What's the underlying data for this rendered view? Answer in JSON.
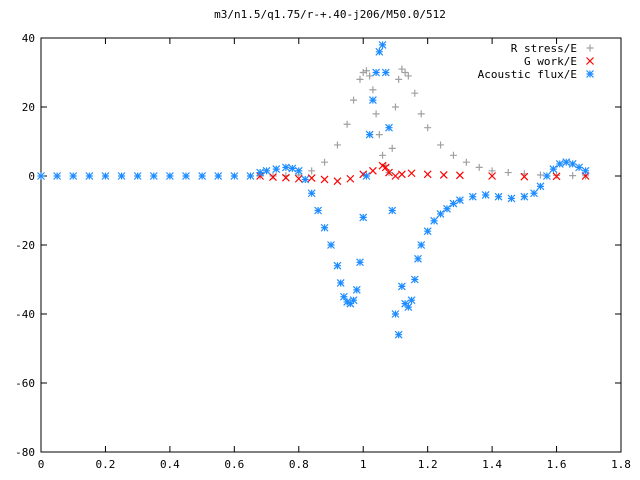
{
  "chart_data": {
    "type": "scatter",
    "title": "m3/n1.5/q1.75/r-+.40-j206/M50.0/512",
    "xlabel": "",
    "ylabel": "",
    "xlim": [
      0,
      1.8
    ],
    "ylim": [
      -80,
      40
    ],
    "x_ticks": [
      "0",
      "0.2",
      "0.4",
      "0.6",
      "0.8",
      "1",
      "1.2",
      "1.4",
      "1.6",
      "1.8"
    ],
    "y_ticks": [
      "40",
      "20",
      "0",
      "-20",
      "-40",
      "-60",
      "-80"
    ],
    "grid": false,
    "legend_position": "top-right",
    "series": [
      {
        "name": "R stress/E",
        "marker": "plus",
        "color": "#a0a0a0",
        "points": [
          [
            0.68,
            0
          ],
          [
            0.72,
            0
          ],
          [
            0.76,
            0.1
          ],
          [
            0.8,
            0.3
          ],
          [
            0.84,
            1.5
          ],
          [
            0.88,
            4
          ],
          [
            0.92,
            9
          ],
          [
            0.95,
            15
          ],
          [
            0.97,
            22
          ],
          [
            0.99,
            28
          ],
          [
            1.0,
            30
          ],
          [
            1.01,
            30.5
          ],
          [
            1.02,
            29
          ],
          [
            1.03,
            25
          ],
          [
            1.04,
            18
          ],
          [
            1.05,
            12
          ],
          [
            1.06,
            6
          ],
          [
            1.07,
            3
          ],
          [
            1.08,
            1
          ],
          [
            1.09,
            8
          ],
          [
            1.1,
            20
          ],
          [
            1.11,
            28
          ],
          [
            1.12,
            31
          ],
          [
            1.13,
            30
          ],
          [
            1.14,
            29
          ],
          [
            1.16,
            24
          ],
          [
            1.18,
            18
          ],
          [
            1.2,
            14
          ],
          [
            1.24,
            9
          ],
          [
            1.28,
            6
          ],
          [
            1.32,
            4
          ],
          [
            1.36,
            2.5
          ],
          [
            1.4,
            1.5
          ],
          [
            1.45,
            1
          ],
          [
            1.5,
            0.6
          ],
          [
            1.55,
            0.3
          ],
          [
            1.6,
            0.2
          ],
          [
            1.65,
            0.1
          ],
          [
            1.69,
            0.05
          ]
        ]
      },
      {
        "name": "G work/E",
        "marker": "cross",
        "color": "#ff0000",
        "points": [
          [
            0.68,
            0
          ],
          [
            0.72,
            -0.3
          ],
          [
            0.76,
            -0.5
          ],
          [
            0.8,
            -0.8
          ],
          [
            0.84,
            -0.6
          ],
          [
            0.88,
            -1.0
          ],
          [
            0.92,
            -1.5
          ],
          [
            0.96,
            -0.8
          ],
          [
            1.0,
            0.5
          ],
          [
            1.03,
            1.5
          ],
          [
            1.06,
            3
          ],
          [
            1.07,
            2.5
          ],
          [
            1.08,
            1
          ],
          [
            1.1,
            0
          ],
          [
            1.12,
            0.5
          ],
          [
            1.15,
            0.8
          ],
          [
            1.2,
            0.5
          ],
          [
            1.25,
            0.3
          ],
          [
            1.3,
            0.2
          ],
          [
            1.4,
            0
          ],
          [
            1.5,
            -0.2
          ],
          [
            1.6,
            -0.1
          ],
          [
            1.69,
            0
          ]
        ]
      },
      {
        "name": "Acoustic flux/E",
        "marker": "star",
        "color": "#1e8cff",
        "points": [
          [
            0.0,
            0
          ],
          [
            0.05,
            0
          ],
          [
            0.1,
            0
          ],
          [
            0.15,
            0
          ],
          [
            0.2,
            0
          ],
          [
            0.25,
            0
          ],
          [
            0.3,
            0
          ],
          [
            0.35,
            0
          ],
          [
            0.4,
            0
          ],
          [
            0.45,
            0
          ],
          [
            0.5,
            0
          ],
          [
            0.55,
            0
          ],
          [
            0.6,
            0
          ],
          [
            0.65,
            0
          ],
          [
            0.68,
            1
          ],
          [
            0.7,
            1.5
          ],
          [
            0.73,
            2
          ],
          [
            0.76,
            2.5
          ],
          [
            0.78,
            2.2
          ],
          [
            0.8,
            1.5
          ],
          [
            0.82,
            -1
          ],
          [
            0.84,
            -5
          ],
          [
            0.86,
            -10
          ],
          [
            0.88,
            -15
          ],
          [
            0.9,
            -20
          ],
          [
            0.92,
            -26
          ],
          [
            0.93,
            -31
          ],
          [
            0.94,
            -35
          ],
          [
            0.95,
            -36.5
          ],
          [
            0.96,
            -37
          ],
          [
            0.97,
            -36
          ],
          [
            0.98,
            -33
          ],
          [
            0.99,
            -25
          ],
          [
            1.0,
            -12
          ],
          [
            1.01,
            0
          ],
          [
            1.02,
            12
          ],
          [
            1.03,
            22
          ],
          [
            1.04,
            30
          ],
          [
            1.05,
            36
          ],
          [
            1.06,
            38
          ],
          [
            1.07,
            30
          ],
          [
            1.08,
            14
          ],
          [
            1.09,
            -10
          ],
          [
            1.1,
            -40
          ],
          [
            1.11,
            -46
          ],
          [
            1.12,
            -32
          ],
          [
            1.13,
            -37
          ],
          [
            1.14,
            -38
          ],
          [
            1.15,
            -36
          ],
          [
            1.16,
            -30
          ],
          [
            1.17,
            -24
          ],
          [
            1.18,
            -20
          ],
          [
            1.2,
            -16
          ],
          [
            1.22,
            -13
          ],
          [
            1.24,
            -11
          ],
          [
            1.26,
            -9.5
          ],
          [
            1.28,
            -8
          ],
          [
            1.3,
            -7
          ],
          [
            1.34,
            -6
          ],
          [
            1.38,
            -5.5
          ],
          [
            1.42,
            -6
          ],
          [
            1.46,
            -6.5
          ],
          [
            1.5,
            -6
          ],
          [
            1.53,
            -5
          ],
          [
            1.55,
            -3
          ],
          [
            1.57,
            0
          ],
          [
            1.59,
            2
          ],
          [
            1.61,
            3.5
          ],
          [
            1.63,
            4
          ],
          [
            1.65,
            3.5
          ],
          [
            1.67,
            2.5
          ],
          [
            1.69,
            1.5
          ]
        ]
      }
    ]
  }
}
